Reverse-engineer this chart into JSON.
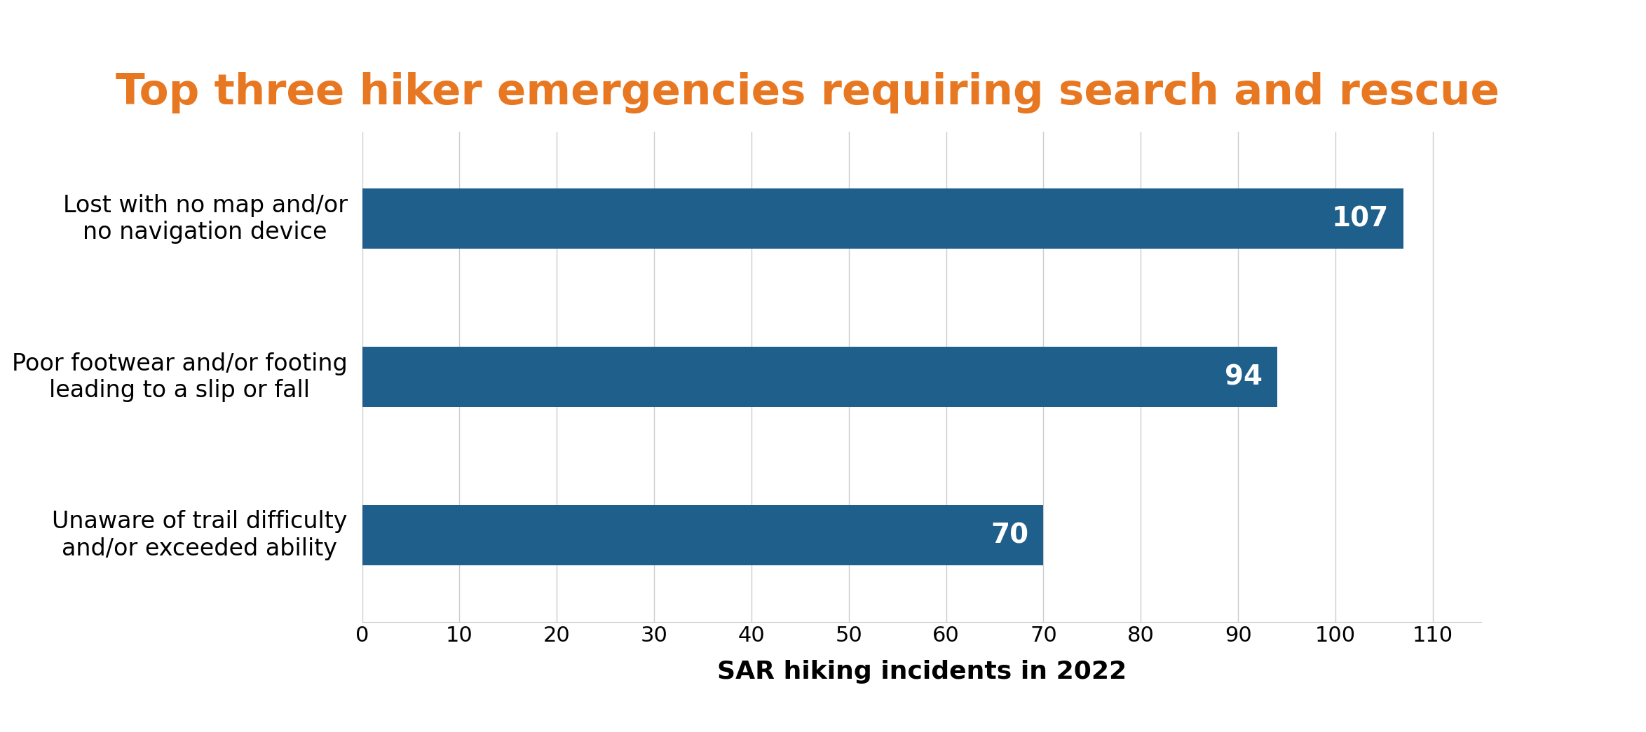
{
  "title": "Top three hiker emergencies requiring search and rescue",
  "title_color": "#E87722",
  "title_fontsize": 44,
  "categories": [
    "Unaware of trail difficulty\nand/or exceeded ability",
    "Poor footwear and/or footing\nleading to a slip or fall",
    "Lost with no map and/or\nno navigation device"
  ],
  "values": [
    70,
    94,
    107
  ],
  "bar_color": "#1F5F8B",
  "value_labels": [
    "70",
    "94",
    "107"
  ],
  "value_label_color": "#ffffff",
  "value_label_fontsize": 28,
  "xlabel": "SAR hiking incidents in 2022",
  "xlabel_fontsize": 26,
  "xlabel_fontweight": "bold",
  "xlim": [
    0,
    115
  ],
  "xticks": [
    0,
    10,
    20,
    30,
    40,
    50,
    60,
    70,
    80,
    90,
    100,
    110
  ],
  "xtick_fontsize": 22,
  "ytick_fontsize": 24,
  "background_color": "#ffffff",
  "grid_color": "#cccccc",
  "bar_height": 0.38
}
